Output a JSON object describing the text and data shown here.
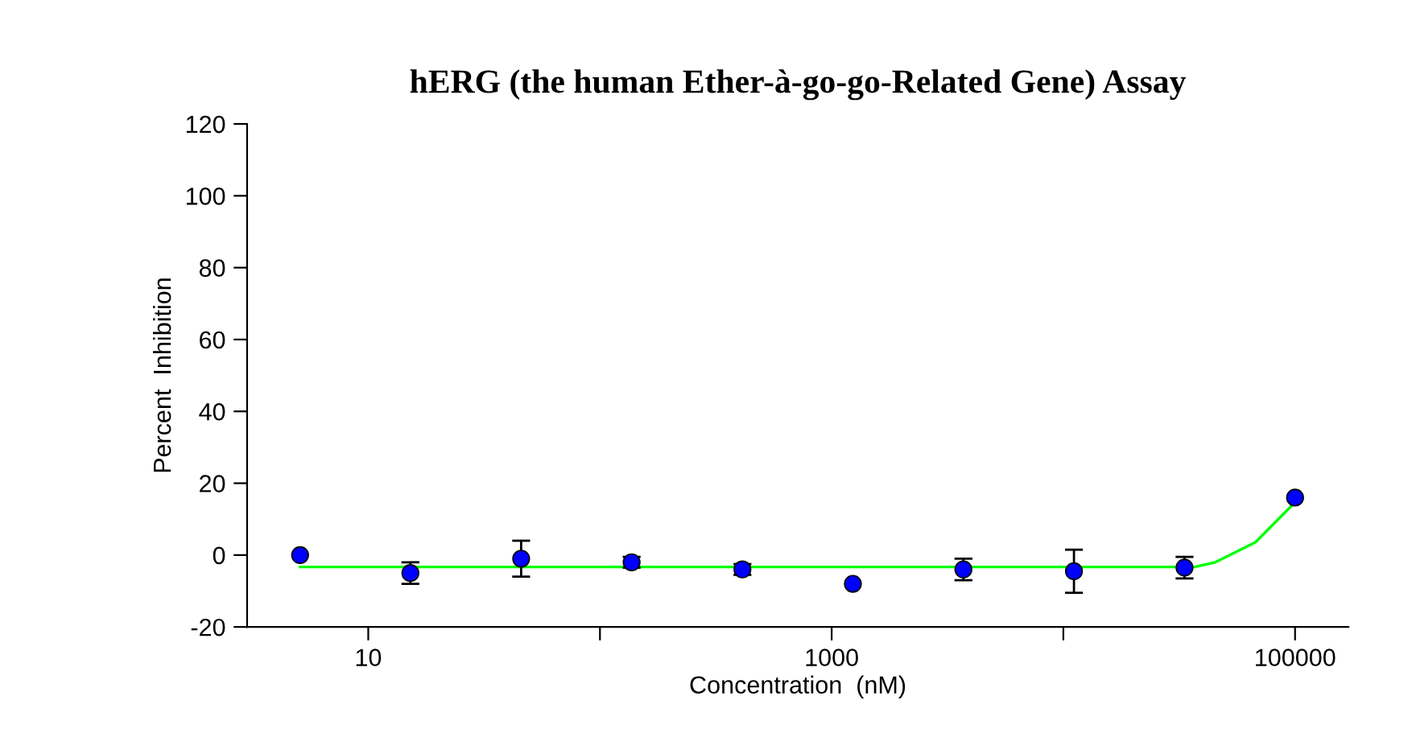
{
  "chart_data": {
    "type": "scatter",
    "title": "hERG (the human Ether-à-go-go-Related Gene) Assay",
    "xlabel": "Concentration  (nM)",
    "ylabel": "Percent  Inhibition",
    "log": "x",
    "xlim": [
      3,
      170000
    ],
    "xticks": [
      10,
      {
        "value": 100,
        "label": null
      },
      1000,
      {
        "value": 10000,
        "label": null
      },
      100000
    ],
    "ylim": [
      -20,
      120
    ],
    "yticks": [
      -20,
      0,
      20,
      40,
      60,
      80,
      100,
      120
    ],
    "grid": false,
    "legend": false,
    "series": [
      {
        "marker": "circle",
        "color": "#0000ff",
        "x": [
          5.08,
          15.2,
          45.7,
          137,
          412,
          1235,
          3704,
          11111,
          33333,
          100000
        ],
        "values": [
          0,
          -5,
          -1,
          -2,
          -4,
          -8,
          -4,
          -4.5,
          -3.5,
          16
        ],
        "errors": [
          null,
          3,
          5,
          1.5,
          1.5,
          null,
          3,
          6,
          3,
          null
        ]
      },
      {
        "type": "line",
        "marker": "none",
        "color": "#00ff00",
        "x": [
          5.08,
          36800,
          45200,
          67600,
          100000
        ],
        "values": [
          -3.3,
          -3.3,
          -2,
          3.6,
          14.7
        ]
      }
    ]
  }
}
